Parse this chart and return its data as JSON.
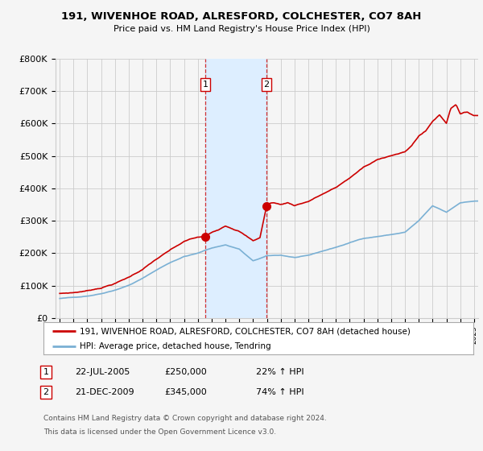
{
  "title": "191, WIVENHOE ROAD, ALRESFORD, COLCHESTER, CO7 8AH",
  "subtitle": "Price paid vs. HM Land Registry's House Price Index (HPI)",
  "legend_property": "191, WIVENHOE ROAD, ALRESFORD, COLCHESTER, CO7 8AH (detached house)",
  "legend_hpi": "HPI: Average price, detached house, Tendring",
  "footer1": "Contains HM Land Registry data © Crown copyright and database right 2024.",
  "footer2": "This data is licensed under the Open Government Licence v3.0.",
  "sale1_date": "22-JUL-2005",
  "sale1_price": "£250,000",
  "sale1_hpi": "22% ↑ HPI",
  "sale1_year": 2005.55,
  "sale1_value": 250000,
  "sale2_date": "21-DEC-2009",
  "sale2_price": "£345,000",
  "sale2_hpi": "74% ↑ HPI",
  "sale2_year": 2009.97,
  "sale2_value": 345000,
  "ylim": [
    0,
    800000
  ],
  "yticks": [
    0,
    100000,
    200000,
    300000,
    400000,
    500000,
    600000,
    700000,
    800000
  ],
  "ytick_labels": [
    "£0",
    "£100K",
    "£200K",
    "£300K",
    "£400K",
    "£500K",
    "£600K",
    "£700K",
    "£800K"
  ],
  "xlim": [
    1994.7,
    2025.3
  ],
  "property_color": "#cc0000",
  "hpi_color": "#7ab0d4",
  "shade_color": "#ddeeff",
  "grid_color": "#cccccc",
  "bg_color": "#f5f5f5",
  "plot_bg": "#f5f5f5",
  "vline_color": "#cc0000"
}
